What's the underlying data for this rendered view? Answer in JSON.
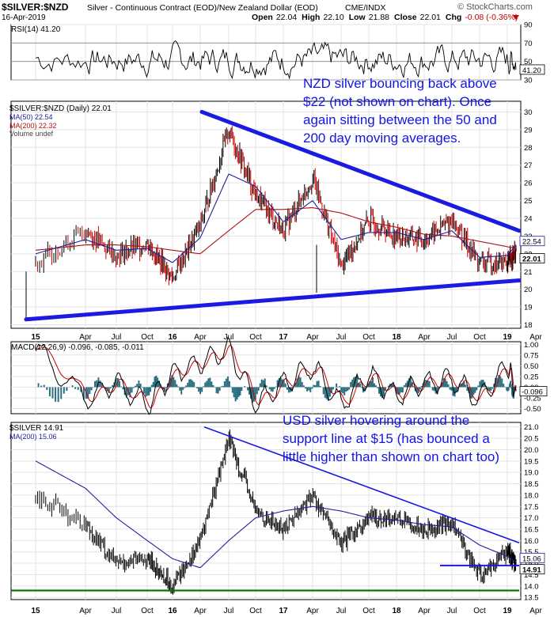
{
  "header": {
    "symbol": "$SILVER:$NZD",
    "description": "Silver - Continuous Contract (EOD)/New Zealand Dollar (EOD)",
    "exchange": "CME/INDX",
    "date": "16-Apr-2019",
    "open_label": "Open",
    "open": "22.04",
    "high_label": "High",
    "high": "22.10",
    "low_label": "Low",
    "low": "21.88",
    "close_label": "Close",
    "close": "22.01",
    "chg_label": "Chg",
    "chg": "-0.08 (-0.36%)",
    "watermark": "© StockCharts.com"
  },
  "colors": {
    "price_up": "#000000",
    "price_down": "#cc0000",
    "ma50": "#1f1fa0",
    "ma200": "#b01010",
    "trendline": "#1a1ae0",
    "support_green": "#007a00",
    "macd_hist": "#2a6f7f",
    "annotation": "#1414e6"
  },
  "x_axis": {
    "ticks": [
      "15",
      "Apr",
      "Jul",
      "Oct",
      "16",
      "Apr",
      "Jul",
      "Oct",
      "17",
      "Apr",
      "Jul",
      "Oct",
      "18",
      "Apr",
      "Jul",
      "Oct",
      "19",
      "Apr"
    ]
  },
  "chart_data": [
    {
      "type": "line",
      "panel": "rsi",
      "title": "RSI(14) 41.20",
      "ylim": [
        30,
        90
      ],
      "yticks": [
        "90",
        "70",
        "50",
        "30"
      ],
      "last_value_label": "41.20",
      "reference_lines": [
        70,
        30
      ]
    },
    {
      "type": "candlestick",
      "panel": "price_nzd",
      "legend": [
        "$SILVER:$NZD (Daily) 22.01",
        "MA(50) 22.54",
        "MA(200) 22.32",
        "Volume undef"
      ],
      "ylim": [
        18,
        30
      ],
      "yticks": [
        "30",
        "29",
        "28",
        "27",
        "26",
        "25",
        "24",
        "23",
        "22",
        "21",
        "20",
        "19",
        "18"
      ],
      "last_value_labels": [
        "22.54",
        "22.01"
      ],
      "x": [
        "2015-01",
        "2015-04",
        "2015-07",
        "2015-10",
        "2016-01",
        "2016-04",
        "2016-07",
        "2016-10",
        "2017-01",
        "2017-04",
        "2017-07",
        "2017-10",
        "2018-01",
        "2018-04",
        "2018-07",
        "2018-10",
        "2019-01",
        "2019-04"
      ],
      "close": [
        21.5,
        23.3,
        21.9,
        22.6,
        20.6,
        23.6,
        29.0,
        25.3,
        23.3,
        26.3,
        21.3,
        23.9,
        23.0,
        22.8,
        23.9,
        21.5,
        21.5,
        22.0
      ],
      "ma50": [
        22.0,
        22.8,
        22.2,
        22.3,
        21.5,
        22.9,
        26.5,
        25.8,
        23.8,
        25.0,
        22.8,
        23.2,
        23.2,
        22.8,
        23.3,
        21.8,
        21.9,
        22.5
      ],
      "ma200": [
        22.2,
        22.5,
        22.5,
        22.4,
        22.2,
        22.0,
        23.3,
        24.5,
        24.5,
        24.6,
        24.3,
        23.8,
        23.5,
        23.1,
        23.0,
        22.7,
        22.4,
        22.3
      ],
      "trendlines": [
        {
          "name": "upper",
          "from": [
            "2016-07",
            30.0
          ],
          "to": [
            "2019-04",
            23.3
          ]
        },
        {
          "name": "lower",
          "from": [
            "2015-01",
            18.3
          ],
          "to": [
            "2019-04",
            20.5
          ]
        }
      ],
      "annotation": "NZD silver bouncing back above $22 (not shown on chart). Once again sitting between the 50 and 200 day moving averages."
    },
    {
      "type": "line",
      "panel": "macd",
      "title": "MACD(12,26,9) -0.096, -0.085, -0.011",
      "ylim": [
        -0.6,
        1.05
      ],
      "yticks": [
        "1.00",
        "0.75",
        "0.50",
        "0.25",
        "0.00",
        "-0.25",
        "-0.50"
      ],
      "last_value_label": "-0.096",
      "x": [
        "2015-01",
        "2015-04",
        "2015-07",
        "2015-10",
        "2016-01",
        "2016-04",
        "2016-07",
        "2016-10",
        "2017-01",
        "2017-04",
        "2017-07",
        "2017-10",
        "2018-01",
        "2018-04",
        "2018-07",
        "2018-10",
        "2019-01",
        "2019-04"
      ],
      "macd": [
        0.9,
        -0.3,
        0.1,
        -0.4,
        0.3,
        0.6,
        0.9,
        -0.4,
        0.1,
        0.5,
        -0.4,
        0.3,
        -0.2,
        0.1,
        0.2,
        -0.3,
        0.5,
        -0.1
      ],
      "signal": [
        0.6,
        -0.1,
        0.0,
        -0.3,
        0.2,
        0.5,
        0.7,
        -0.3,
        0.05,
        0.4,
        -0.3,
        0.2,
        -0.15,
        0.05,
        0.15,
        -0.2,
        0.35,
        -0.085
      ]
    },
    {
      "type": "line",
      "panel": "price_usd",
      "legend": [
        "$SILVER 14.91",
        "MA(200) 15.06"
      ],
      "ylim": [
        13.5,
        21.0
      ],
      "yticks": [
        "21.0",
        "20.5",
        "20.0",
        "19.5",
        "19.0",
        "18.5",
        "18.0",
        "17.5",
        "17.0",
        "16.5",
        "16.0",
        "15.5",
        "15.0",
        "14.5",
        "14.0",
        "13.5"
      ],
      "last_value_labels": [
        "15.06",
        "14.91"
      ],
      "x": [
        "2015-01",
        "2015-04",
        "2015-07",
        "2015-10",
        "2016-01",
        "2016-04",
        "2016-07",
        "2016-10",
        "2017-01",
        "2017-04",
        "2017-07",
        "2017-10",
        "2018-01",
        "2018-04",
        "2018-07",
        "2018-10",
        "2019-01",
        "2019-04"
      ],
      "close": [
        18.0,
        16.7,
        15.0,
        15.2,
        14.0,
        16.0,
        20.5,
        17.3,
        16.5,
        18.0,
        15.8,
        17.0,
        17.0,
        16.5,
        16.8,
        14.4,
        15.6,
        14.9
      ],
      "ma200": [
        19.5,
        18.3,
        17.0,
        16.0,
        15.2,
        14.8,
        16.0,
        17.0,
        17.3,
        17.5,
        17.3,
        17.0,
        16.9,
        16.7,
        16.6,
        15.8,
        15.3,
        15.06
      ],
      "trendlines": [
        {
          "name": "upper",
          "from": [
            "2016-07",
            21.0
          ],
          "to": [
            "2019-04",
            15.9
          ]
        },
        {
          "name": "support",
          "from": [
            "2018-07",
            14.9
          ],
          "to": [
            "2019-04",
            14.9
          ]
        },
        {
          "name": "green_base",
          "from": [
            "2015-01",
            13.8
          ],
          "to": [
            "2019-04",
            13.8
          ]
        }
      ],
      "annotation": "USD silver hovering around the support line at $15 (has bounced a little higher than shown on chart too)"
    }
  ]
}
